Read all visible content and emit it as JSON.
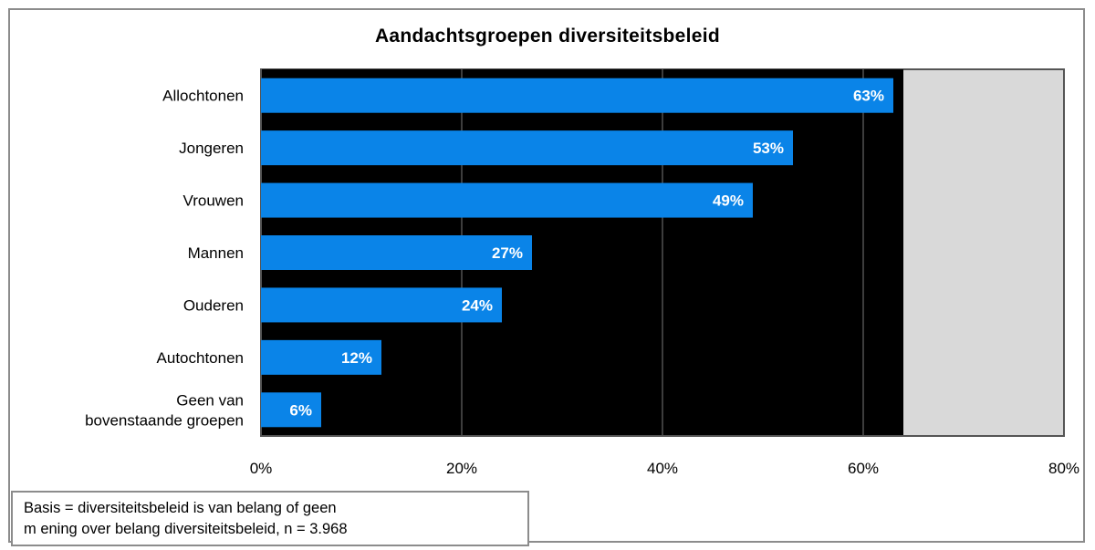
{
  "chart_data": {
    "type": "bar",
    "orientation": "horizontal",
    "title": "Aandachtsgroepen diversiteitsbeleid",
    "categories": [
      "Allochtonen",
      "Jongeren",
      "Vrouwen",
      "Mannen",
      "Ouderen",
      "Autochtonen",
      "Geen van bovenstaande groepen"
    ],
    "category_lines": [
      [
        "Allochtonen"
      ],
      [
        "Jongeren"
      ],
      [
        "Vrouwen"
      ],
      [
        "Mannen"
      ],
      [
        "Ouderen"
      ],
      [
        "Autochtonen"
      ],
      [
        "Geen van",
        "bovenstaande groepen"
      ]
    ],
    "values": [
      63,
      53,
      49,
      27,
      24,
      12,
      6
    ],
    "value_labels": [
      "63%",
      "53%",
      "49%",
      "27%",
      "24%",
      "12%",
      "6%"
    ],
    "xlim": [
      0,
      80
    ],
    "xticks": [
      0,
      20,
      40,
      60,
      80
    ],
    "xtick_labels": [
      "0%",
      "20%",
      "40%",
      "60%",
      "80%"
    ],
    "xlabel": "",
    "ylabel": "",
    "grid": true,
    "legend": "none",
    "colors": {
      "bar": "#0A84E8",
      "plot_bg": "#000000",
      "plot_bg_outer": "#D9D9D9",
      "frame": "#8C8C8C"
    },
    "plot_bg_extent": 64
  },
  "footnote": {
    "line1": "Basis = diversiteitsbeleid is van belang of geen",
    "line2": "m ening over belang diversiteitsbeleid, n = 3.968"
  }
}
